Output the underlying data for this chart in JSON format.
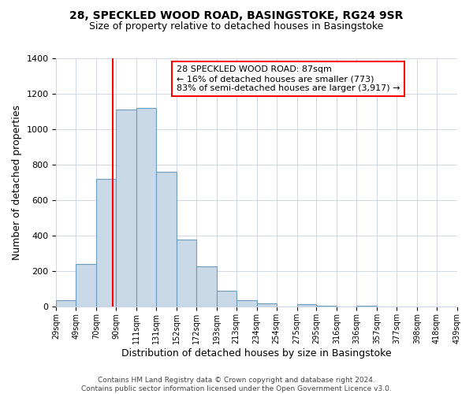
{
  "title": "28, SPECKLED WOOD ROAD, BASINGSTOKE, RG24 9SR",
  "subtitle": "Size of property relative to detached houses in Basingstoke",
  "xlabel": "Distribution of detached houses by size in Basingstoke",
  "ylabel": "Number of detached properties",
  "bin_edges": [
    29,
    49,
    70,
    90,
    111,
    131,
    152,
    172,
    193,
    213,
    234,
    254,
    275,
    295,
    316,
    336,
    357,
    377,
    398,
    418,
    439
  ],
  "bin_labels": [
    "29sqm",
    "49sqm",
    "70sqm",
    "90sqm",
    "111sqm",
    "131sqm",
    "152sqm",
    "172sqm",
    "193sqm",
    "213sqm",
    "234sqm",
    "254sqm",
    "275sqm",
    "295sqm",
    "316sqm",
    "336sqm",
    "357sqm",
    "377sqm",
    "398sqm",
    "418sqm",
    "439sqm"
  ],
  "counts": [
    35,
    240,
    720,
    1110,
    1120,
    760,
    380,
    230,
    90,
    35,
    20,
    0,
    15,
    5,
    0,
    5,
    0,
    0,
    0,
    0
  ],
  "bar_color": "#c9d9e8",
  "bar_edge_color": "#6a9cbf",
  "vline_x": 87,
  "vline_color": "red",
  "annotation_title": "28 SPECKLED WOOD ROAD: 87sqm",
  "annotation_line1": "← 16% of detached houses are smaller (773)",
  "annotation_line2": "83% of semi-detached houses are larger (3,917) →",
  "annotation_box_color": "#ffffff",
  "annotation_box_edge": "red",
  "ylim": [
    0,
    1400
  ],
  "yticks": [
    0,
    200,
    400,
    600,
    800,
    1000,
    1200,
    1400
  ],
  "footer_line1": "Contains HM Land Registry data © Crown copyright and database right 2024.",
  "footer_line2": "Contains public sector information licensed under the Open Government Licence v3.0.",
  "background_color": "#ffffff",
  "grid_color": "#d0d8e8",
  "title_fontsize": 10,
  "subtitle_fontsize": 9,
  "xlabel_fontsize": 9,
  "ylabel_fontsize": 9,
  "footer_fontsize": 6.5,
  "annotation_fontsize": 8
}
